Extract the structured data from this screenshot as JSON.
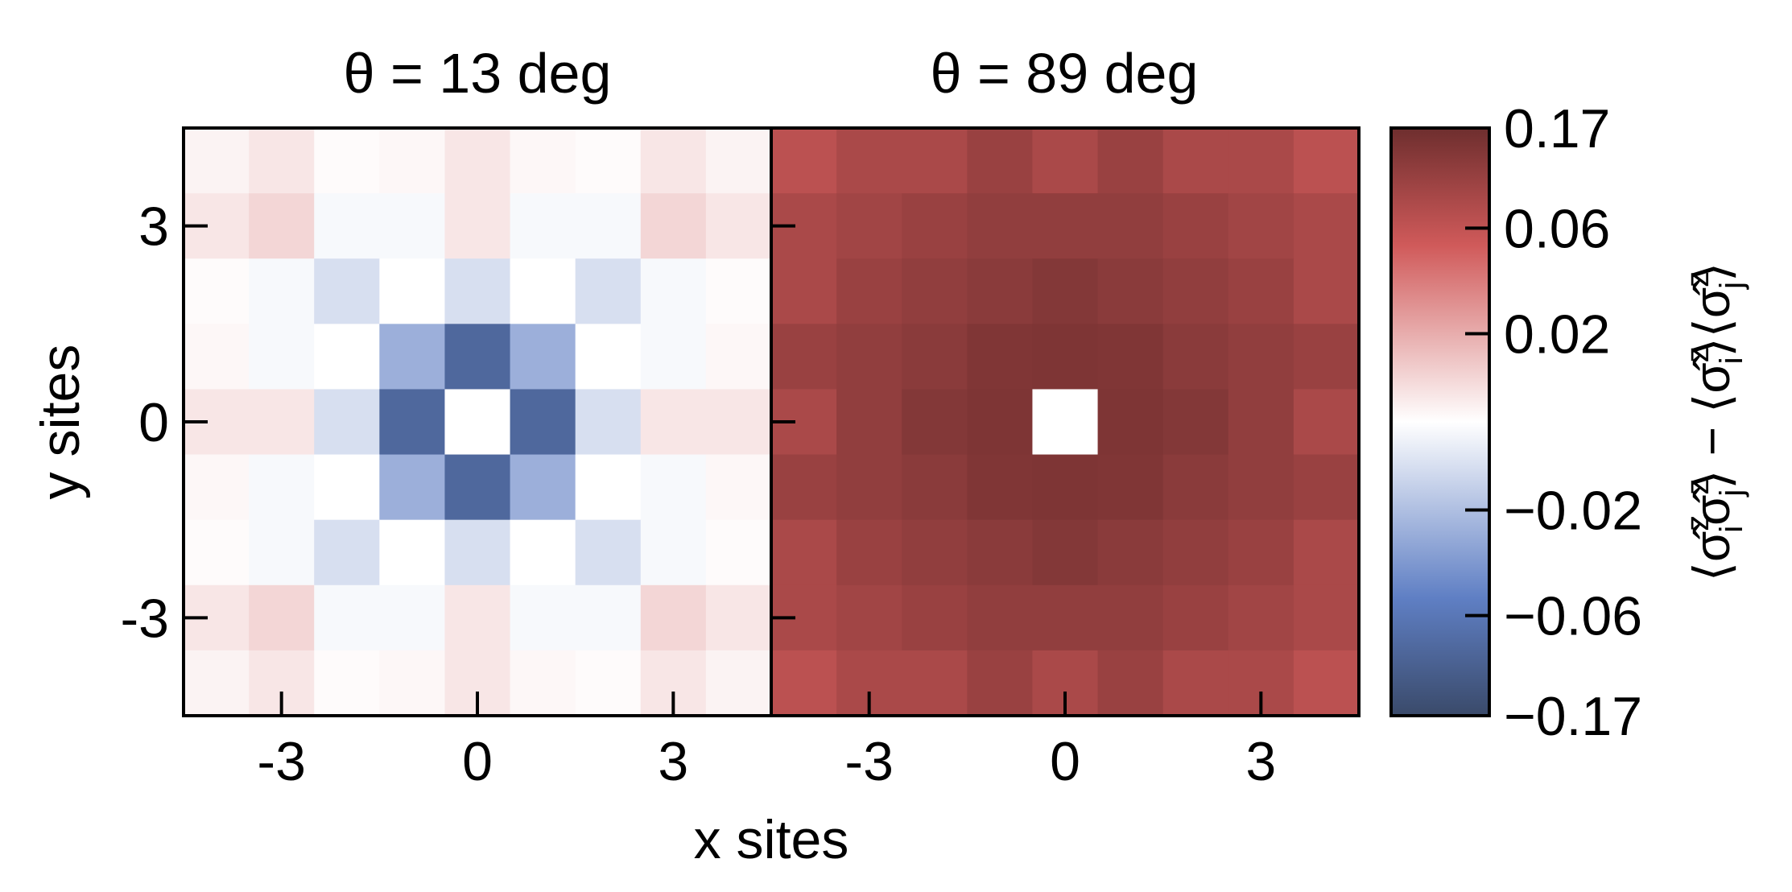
{
  "chart_data": {
    "type": "heatmap",
    "xlabel": "x sites",
    "ylabel": "y sites",
    "x": [
      -4,
      -3,
      -2,
      -1,
      0,
      1,
      2,
      3,
      4
    ],
    "y": [
      4,
      3,
      2,
      1,
      0,
      -1,
      -2,
      -3,
      -4
    ],
    "xticks": [
      -3,
      0,
      3
    ],
    "xtick_labels": [
      "-3",
      "0",
      "3"
    ],
    "yticks": [
      3,
      0,
      -3
    ],
    "ytick_labels": [
      "3",
      "0",
      "-3"
    ],
    "panels": [
      {
        "title": "θ = 13 deg",
        "values": [
          [
            0.003,
            0.006,
            0.001,
            0.002,
            0.006,
            0.002,
            0.001,
            0.006,
            0.003
          ],
          [
            0.006,
            0.01,
            -0.002,
            -0.002,
            0.006,
            -0.002,
            -0.002,
            0.01,
            0.006
          ],
          [
            0.001,
            -0.002,
            -0.01,
            0.0,
            -0.01,
            0.0,
            -0.01,
            -0.002,
            0.001
          ],
          [
            0.002,
            -0.002,
            0.0,
            -0.025,
            -0.085,
            -0.025,
            0.0,
            -0.002,
            0.002
          ],
          [
            0.006,
            0.006,
            -0.01,
            -0.085,
            null,
            -0.085,
            -0.01,
            0.006,
            0.006
          ],
          [
            0.002,
            -0.002,
            0.0,
            -0.025,
            -0.085,
            -0.025,
            0.0,
            -0.002,
            0.002
          ],
          [
            0.001,
            -0.002,
            -0.01,
            0.0,
            -0.01,
            0.0,
            -0.01,
            -0.002,
            0.001
          ],
          [
            0.006,
            0.01,
            -0.002,
            -0.002,
            0.006,
            -0.002,
            -0.002,
            0.01,
            0.006
          ],
          [
            0.003,
            0.006,
            0.001,
            0.002,
            0.006,
            0.002,
            0.001,
            0.006,
            0.003
          ]
        ]
      },
      {
        "title": "θ = 89 deg",
        "values": [
          [
            0.065,
            0.08,
            0.08,
            0.1,
            0.08,
            0.1,
            0.08,
            0.08,
            0.065
          ],
          [
            0.08,
            0.09,
            0.1,
            0.11,
            0.11,
            0.11,
            0.1,
            0.09,
            0.08
          ],
          [
            0.08,
            0.1,
            0.11,
            0.12,
            0.13,
            0.12,
            0.11,
            0.1,
            0.08
          ],
          [
            0.1,
            0.11,
            0.12,
            0.135,
            0.14,
            0.135,
            0.12,
            0.11,
            0.1
          ],
          [
            0.08,
            0.11,
            0.13,
            0.14,
            null,
            0.14,
            0.13,
            0.11,
            0.08
          ],
          [
            0.1,
            0.11,
            0.12,
            0.135,
            0.14,
            0.135,
            0.12,
            0.11,
            0.1
          ],
          [
            0.08,
            0.1,
            0.11,
            0.12,
            0.13,
            0.12,
            0.11,
            0.1,
            0.08
          ],
          [
            0.08,
            0.09,
            0.1,
            0.11,
            0.11,
            0.11,
            0.1,
            0.09,
            0.08
          ],
          [
            0.065,
            0.08,
            0.08,
            0.1,
            0.08,
            0.1,
            0.08,
            0.08,
            0.065
          ]
        ]
      }
    ],
    "colorbar": {
      "label_parts": [
        "⟨σ̂",
        "z",
        "i",
        "σ̂",
        "z",
        "j",
        "⟩ − ⟨σ̂",
        "z",
        "i",
        "⟩⟨σ̂",
        "z",
        "j",
        "⟩"
      ],
      "tick_values": [
        0.17,
        0.06,
        0.02,
        -0.02,
        -0.06,
        -0.17
      ],
      "tick_labels": [
        "0.17",
        "0.06",
        "0.02",
        "−0.02",
        "−0.06",
        "−0.17"
      ],
      "range": [
        -0.17,
        0.17
      ],
      "scale": "symmetric-log",
      "linear_threshold": 0.02,
      "colors": {
        "min": "#3a4a6a",
        "low": "#5f7fc4",
        "mid": "#ffffff",
        "high": "#d05a5a",
        "max": "#6e2e2e"
      }
    },
    "grid": false
  }
}
